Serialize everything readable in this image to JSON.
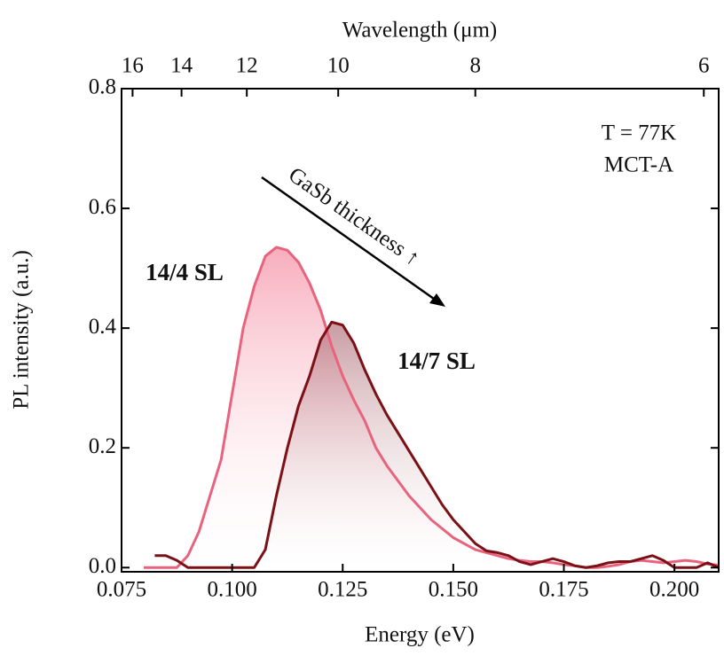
{
  "chart_data": {
    "type": "line",
    "x_label": "Energy (eV)",
    "y_label": "PL intensity (a.u.)",
    "x2_label": "Wavelength (μm)",
    "x": [
      0.08,
      0.0825,
      0.085,
      0.0875,
      0.09,
      0.0925,
      0.095,
      0.0975,
      0.1,
      0.1025,
      0.105,
      0.1075,
      0.11,
      0.1125,
      0.115,
      0.1175,
      0.12,
      0.1225,
      0.125,
      0.1275,
      0.13,
      0.1325,
      0.135,
      0.1375,
      0.14,
      0.1425,
      0.145,
      0.1475,
      0.15,
      0.1525,
      0.155,
      0.1575,
      0.16,
      0.1625,
      0.165,
      0.1675,
      0.17,
      0.1725,
      0.175,
      0.1775,
      0.18,
      0.1825,
      0.185,
      0.1875,
      0.19,
      0.1925,
      0.195,
      0.1975,
      0.2,
      0.2025,
      0.205,
      0.2075,
      0.21
    ],
    "series": [
      {
        "name": "14/4 SL",
        "color": "#e8637d",
        "values": [
          0,
          0,
          0,
          0,
          0.02,
          0.06,
          0.12,
          0.18,
          0.29,
          0.4,
          0.47,
          0.52,
          0.535,
          0.53,
          0.51,
          0.475,
          0.43,
          0.37,
          0.32,
          0.28,
          0.245,
          0.2,
          0.17,
          0.145,
          0.12,
          0.1,
          0.08,
          0.065,
          0.05,
          0.04,
          0.03,
          0.025,
          0.02,
          0.015,
          0.012,
          0.01,
          0.01,
          0.008,
          0.005,
          0.003,
          0,
          0,
          0.002,
          0.005,
          0.01,
          0.012,
          0.01,
          0.008,
          0.01,
          0.012,
          0.01,
          0.006,
          0.004
        ]
      },
      {
        "name": "14/7 SL",
        "color": "#7b1016",
        "values": [
          null,
          0.02,
          0.02,
          0.012,
          0,
          0,
          0,
          0,
          0,
          0,
          0,
          0.03,
          0.12,
          0.2,
          0.27,
          0.32,
          0.38,
          0.41,
          0.405,
          0.375,
          0.33,
          0.29,
          0.255,
          0.225,
          0.195,
          0.165,
          0.135,
          0.105,
          0.08,
          0.06,
          0.04,
          0.028,
          0.025,
          0.02,
          0.01,
          0.005,
          0.01,
          0.015,
          0.01,
          0.003,
          0,
          0.003,
          0.008,
          0.01,
          0.01,
          0.015,
          0.02,
          0.012,
          0,
          0,
          0,
          0.008,
          0
        ]
      }
    ],
    "xlim": [
      0.075,
      0.21
    ],
    "xticks": [
      0.075,
      {
        "value": 0.1,
        "label": "0.100"
      },
      0.125,
      {
        "value": 0.15,
        "label": "0.150"
      },
      0.175,
      {
        "value": 0.2,
        "label": "0.200"
      }
    ],
    "ylim": [
      -0.007,
      0.8
    ],
    "yticks": [
      {
        "value": 0,
        "label": "0.0"
      },
      0.2,
      0.4,
      0.6,
      0.8
    ],
    "x2_scale": {
      "type": "reciprocal",
      "constant": 1.23984
    },
    "x2ticks": [
      16,
      14,
      12,
      10,
      8,
      6
    ],
    "annotations": [
      "T = 77K",
      "MCT-A",
      "GaSb thickness ↑"
    ],
    "grid": false
  }
}
